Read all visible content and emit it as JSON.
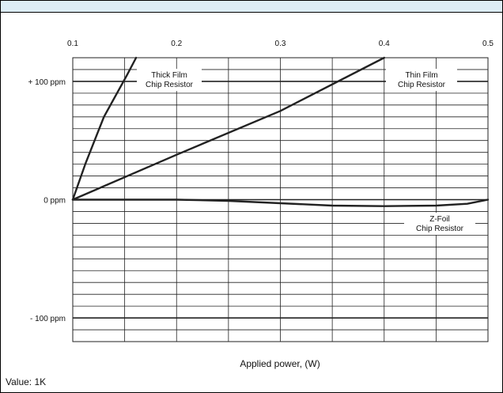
{
  "chart_data": {
    "type": "line",
    "title": "",
    "xlabel": "Applied power, (W)",
    "ylabel": "",
    "xlim": [
      0.1,
      0.5
    ],
    "ylim": [
      -120,
      120
    ],
    "x_ticks": [
      {
        "value": 0.1,
        "label": "0.1"
      },
      {
        "value": 0.2,
        "label": "0.2"
      },
      {
        "value": 0.3,
        "label": "0.3"
      },
      {
        "value": 0.4,
        "label": "0.4"
      },
      {
        "value": 0.5,
        "label": "0.5"
      }
    ],
    "y_ticks": [
      {
        "value": 100,
        "label": "+ 100 ppm"
      },
      {
        "value": 0,
        "label": "0 ppm"
      },
      {
        "value": -100,
        "label": "- 100 ppm"
      }
    ],
    "grid": true,
    "series": [
      {
        "name": "Thick Film Chip Resistor",
        "x": [
          0.1,
          0.112,
          0.13,
          0.152,
          0.161
        ],
        "y": [
          0,
          30,
          70,
          105,
          120
        ]
      },
      {
        "name": "Thin Film Chip Resistor",
        "x": [
          0.1,
          0.2,
          0.3,
          0.4
        ],
        "y": [
          0,
          38,
          75,
          120
        ]
      },
      {
        "name": "Z-Foil Chip Resistor",
        "x": [
          0.1,
          0.2,
          0.25,
          0.3,
          0.35,
          0.4,
          0.45,
          0.48,
          0.5
        ],
        "y": [
          0,
          0,
          -1,
          -3,
          -5,
          -5.5,
          -5,
          -3.5,
          0
        ]
      }
    ],
    "annotations": [
      {
        "lines": [
          "Thick Film",
          "Chip Resistor"
        ]
      },
      {
        "lines": [
          "Thin Film",
          "Chip Resistor"
        ]
      },
      {
        "lines": [
          "Z-Foil",
          "Chip Resistor"
        ]
      }
    ]
  },
  "footnote": "Value: 1K",
  "colors": {
    "header_band": "#dcecf5",
    "line": "#222222",
    "grid": "#222222"
  }
}
